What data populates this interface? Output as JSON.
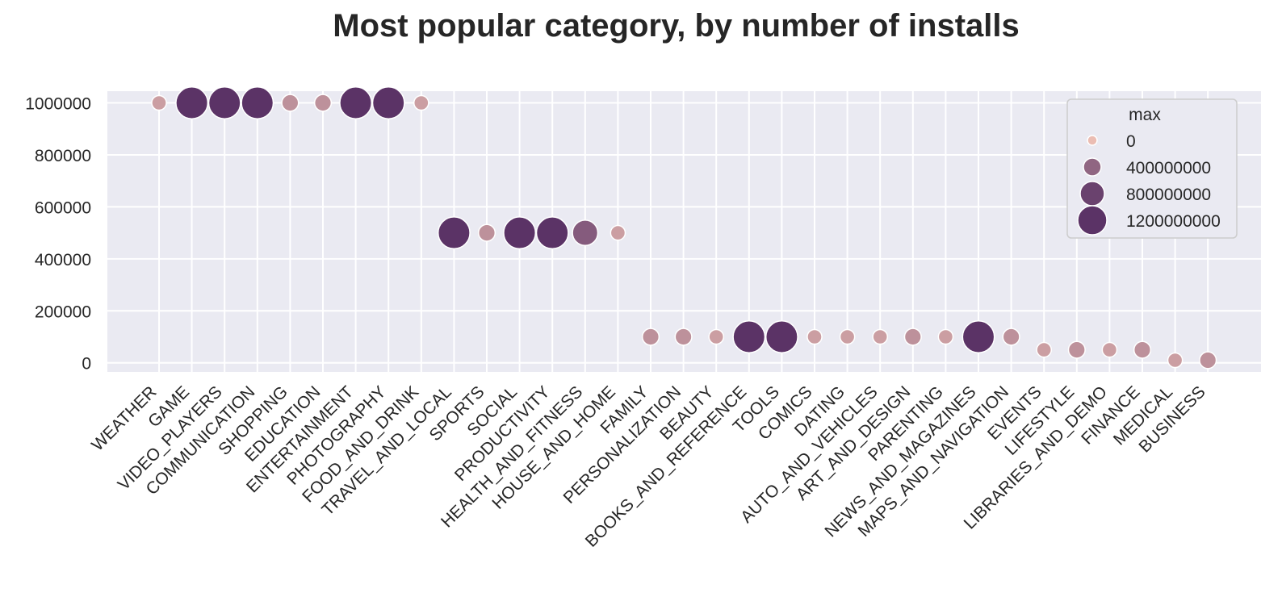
{
  "chart_data": {
    "type": "scatter",
    "title": "Most popular category, by number of installs",
    "xlabel": "",
    "ylabel": "",
    "ylim": [
      -35000,
      1045000
    ],
    "y_ticks": [
      0,
      200000,
      400000,
      600000,
      800000,
      1000000
    ],
    "y_tick_labels": [
      "0",
      "200000",
      "400000",
      "600000",
      "800000",
      "1000000"
    ],
    "grid": true,
    "categories": [
      "WEATHER",
      "GAME",
      "VIDEO_PLAYERS",
      "COMMUNICATION",
      "SHOPPING",
      "EDUCATION",
      "ENTERTAINMENT",
      "PHOTOGRAPHY",
      "FOOD_AND_DRINK",
      "TRAVEL_AND_LOCAL",
      "SPORTS",
      "SOCIAL",
      "PRODUCTIVITY",
      "HEALTH_AND_FITNESS",
      "HOUSE_AND_HOME",
      "FAMILY",
      "PERSONALIZATION",
      "BEAUTY",
      "BOOKS_AND_REFERENCE",
      "TOOLS",
      "COMICS",
      "DATING",
      "AUTO_AND_VEHICLES",
      "ART_AND_DESIGN",
      "PARENTING",
      "NEWS_AND_MAGAZINES",
      "MAPS_AND_NAVIGATION",
      "EVENTS",
      "LIFESTYLE",
      "LIBRARIES_AND_DEMO",
      "FINANCE",
      "MEDICAL",
      "BUSINESS"
    ],
    "values": [
      1000000,
      1000000,
      1000000,
      1000000,
      1000000,
      1000000,
      1000000,
      1000000,
      1000000,
      500000,
      500000,
      500000,
      500000,
      500000,
      500000,
      100000,
      100000,
      100000,
      100000,
      100000,
      100000,
      100000,
      100000,
      100000,
      100000,
      100000,
      100000,
      50000,
      50000,
      50000,
      50000,
      10000,
      10000
    ],
    "size_values": [
      50000000,
      1000000000,
      1000000000,
      1000000000,
      100000000,
      100000000,
      1000000000,
      1000000000,
      50000000,
      1000000000,
      100000000,
      1000000000,
      1000000000,
      500000000,
      50000000,
      100000000,
      100000000,
      50000000,
      1000000000,
      1000000000,
      50000000,
      50000000,
      50000000,
      100000000,
      50000000,
      1000000000,
      100000000,
      50000000,
      100000000,
      50000000,
      100000000,
      50000000,
      100000000
    ],
    "legend": {
      "title": "max",
      "placement": "top-right",
      "entries": [
        {
          "label": "0",
          "value": 0
        },
        {
          "label": "400000000",
          "value": 400000000
        },
        {
          "label": "800000000",
          "value": 800000000
        },
        {
          "label": "1200000000",
          "value": 1200000000
        }
      ]
    },
    "colors": {
      "background": "#eaeaf2",
      "grid": "#ffffff",
      "color_low": "#ebbdb3",
      "color_high": "#5b3366"
    }
  }
}
